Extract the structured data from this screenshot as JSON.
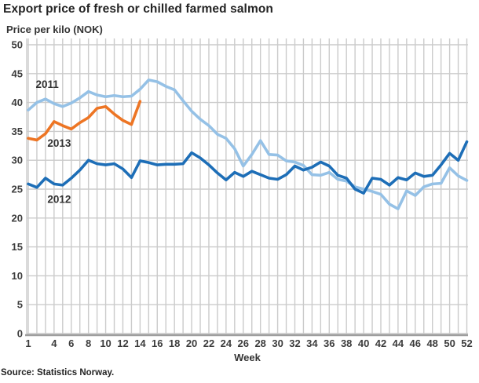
{
  "source": "Source: Statistics Norway.",
  "chart_data": {
    "type": "line",
    "title": "Export price of fresh or chilled farmed salmon",
    "ylabel": "Price per kilo (NOK)",
    "xlabel": "Week",
    "ylim": [
      0,
      50
    ],
    "xlim_weeks": [
      1,
      52
    ],
    "grid": true,
    "legend_position": "inline-labels-near-lines",
    "yticks": [
      0,
      5,
      10,
      15,
      20,
      25,
      30,
      35,
      40,
      45,
      50
    ],
    "xticks": [
      1,
      4,
      6,
      8,
      10,
      12,
      14,
      16,
      18,
      20,
      22,
      24,
      26,
      28,
      30,
      32,
      34,
      36,
      38,
      40,
      42,
      44,
      46,
      48,
      50,
      52
    ],
    "grid_color": "#cbcbcb",
    "axis_color": "#9e9e9e",
    "series": [
      {
        "name": "2011",
        "color": "#95c1e6",
        "start_week": 1,
        "values": [
          38.7,
          40.0,
          40.6,
          39.8,
          39.3,
          39.9,
          40.8,
          41.9,
          41.3,
          41.0,
          41.2,
          41.0,
          41.1,
          42.3,
          43.9,
          43.6,
          42.8,
          42.2,
          40.3,
          38.5,
          37.1,
          36.0,
          34.5,
          33.8,
          32.0,
          29.0,
          31.0,
          33.4,
          31.0,
          30.9,
          29.9,
          29.7,
          29.1,
          27.5,
          27.4,
          27.9,
          26.7,
          26.4,
          25.4,
          25.0,
          24.6,
          24.1,
          22.4,
          21.6,
          24.7,
          23.9,
          25.4,
          25.9,
          26.0,
          28.7,
          27.3,
          26.5
        ]
      },
      {
        "name": "2013",
        "color": "#ed7524",
        "start_week": 1,
        "values": [
          33.8,
          33.5,
          34.6,
          36.7,
          36.0,
          35.4,
          36.5,
          37.4,
          39.0,
          39.3,
          38.0,
          36.9,
          36.2,
          40.2
        ]
      },
      {
        "name": "2012",
        "color": "#1d6eb7",
        "start_week": 1,
        "values": [
          25.9,
          25.3,
          26.9,
          25.9,
          25.7,
          26.9,
          28.3,
          30.0,
          29.4,
          29.2,
          29.4,
          28.5,
          27.0,
          29.9,
          29.6,
          29.2,
          29.3,
          29.3,
          29.4,
          31.3,
          30.4,
          29.2,
          27.8,
          26.6,
          27.9,
          27.2,
          28.1,
          27.5,
          26.9,
          26.7,
          27.5,
          29.0,
          28.3,
          28.8,
          29.7,
          29.0,
          27.4,
          26.9,
          25.0,
          24.3,
          26.9,
          26.7,
          25.7,
          27.0,
          26.6,
          27.8,
          27.2,
          27.4,
          29.2,
          31.2,
          30.0,
          33.2
        ]
      }
    ],
    "annotations": [
      {
        "text": "2011",
        "week": 3.2,
        "value": 43.2
      },
      {
        "text": "2013",
        "week": 4.6,
        "value": 33.0
      },
      {
        "text": "2012",
        "week": 4.6,
        "value": 23.3
      }
    ]
  }
}
